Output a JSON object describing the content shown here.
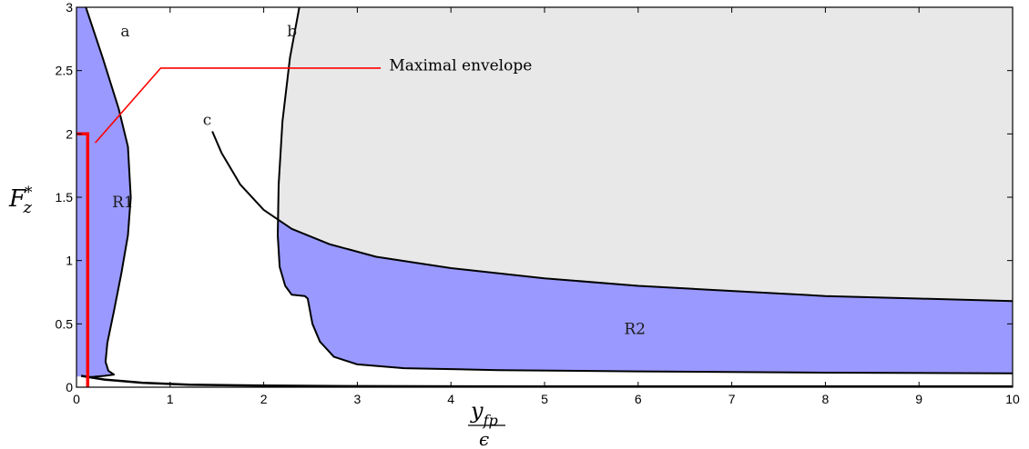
{
  "chart_data": {
    "type": "area",
    "xlim": [
      0,
      10
    ],
    "ylim": [
      0,
      3
    ],
    "xticks": [
      0,
      1,
      2,
      3,
      4,
      5,
      6,
      7,
      8,
      9,
      10
    ],
    "yticks": [
      0,
      0.5,
      1,
      1.5,
      2,
      2.5,
      3
    ],
    "xtick_labels": [
      "0",
      "1",
      "2",
      "3",
      "4",
      "5",
      "6",
      "7",
      "8",
      "9",
      "10"
    ],
    "ytick_labels": [
      "0",
      "0.5",
      "1",
      "1.5",
      "2",
      "2.5",
      "3"
    ],
    "xlabel": {
      "numerator": "y",
      "subscript": "fp",
      "denominator": "ϵ"
    },
    "ylabel": {
      "base": "F",
      "subscript": "z",
      "superscript": "*"
    },
    "grid": false,
    "colors": {
      "region": "#9999ff",
      "feasible_gray": "#e8e8e8",
      "curve": "#000000",
      "envelope": "#ff0000",
      "annotation_text": "#ff0000"
    },
    "curves": [
      {
        "label": "a",
        "points": [
          [
            0.1,
            3.0
          ],
          [
            0.28,
            2.6
          ],
          [
            0.45,
            2.2
          ],
          [
            0.55,
            1.9
          ],
          [
            0.58,
            1.5
          ],
          [
            0.55,
            1.2
          ],
          [
            0.48,
            0.9
          ],
          [
            0.4,
            0.6
          ],
          [
            0.33,
            0.35
          ],
          [
            0.31,
            0.2
          ],
          [
            0.34,
            0.13
          ],
          [
            0.4,
            0.1
          ],
          [
            0.3,
            0.09
          ],
          [
            0.15,
            0.08
          ],
          [
            0.1,
            0.085
          ]
        ]
      },
      {
        "label": "b",
        "points": [
          [
            2.38,
            3.0
          ],
          [
            2.28,
            2.6
          ],
          [
            2.2,
            2.1
          ],
          [
            2.16,
            1.6
          ],
          [
            2.15,
            1.2
          ],
          [
            2.17,
            0.95
          ],
          [
            2.23,
            0.8
          ],
          [
            2.3,
            0.73
          ],
          [
            2.44,
            0.72
          ],
          [
            2.47,
            0.7
          ],
          [
            2.52,
            0.5
          ],
          [
            2.6,
            0.36
          ],
          [
            2.75,
            0.24
          ],
          [
            3.0,
            0.18
          ],
          [
            3.5,
            0.15
          ],
          [
            4.5,
            0.135
          ],
          [
            6.0,
            0.125
          ],
          [
            8.0,
            0.115
          ],
          [
            10.0,
            0.11
          ]
        ]
      },
      {
        "label": "c",
        "points": [
          [
            1.45,
            2.02
          ],
          [
            1.55,
            1.85
          ],
          [
            1.75,
            1.6
          ],
          [
            2.0,
            1.4
          ],
          [
            2.3,
            1.25
          ],
          [
            2.7,
            1.13
          ],
          [
            3.2,
            1.03
          ],
          [
            4.0,
            0.94
          ],
          [
            5.0,
            0.86
          ],
          [
            6.0,
            0.8
          ],
          [
            7.0,
            0.76
          ],
          [
            8.0,
            0.72
          ],
          [
            9.0,
            0.7
          ],
          [
            10.0,
            0.68
          ]
        ]
      },
      {
        "label": "",
        "points": [
          [
            0.05,
            0.09
          ],
          [
            0.3,
            0.06
          ],
          [
            0.7,
            0.035
          ],
          [
            1.2,
            0.02
          ],
          [
            2.0,
            0.012
          ],
          [
            3.0,
            0.008
          ],
          [
            5.0,
            0.006
          ],
          [
            10.0,
            0.005
          ]
        ]
      }
    ],
    "envelope": [
      [
        0.12,
        0.0
      ],
      [
        0.12,
        2.0
      ],
      [
        0.0,
        2.0
      ]
    ],
    "regions": [
      {
        "name": "R1",
        "label_at": [
          0.38,
          1.42
        ]
      },
      {
        "name": "R2",
        "label_at": [
          5.85,
          0.42
        ]
      }
    ],
    "curve_label_at": {
      "a": [
        0.47,
        2.77
      ],
      "b": [
        2.25,
        2.77
      ],
      "c": [
        1.35,
        2.07
      ]
    },
    "annotation": {
      "text": "Maximal envelope",
      "text_at": [
        3.34,
        2.5
      ],
      "line": [
        [
          3.25,
          2.52
        ],
        [
          0.9,
          2.52
        ],
        [
          0.2,
          1.93
        ]
      ]
    }
  }
}
